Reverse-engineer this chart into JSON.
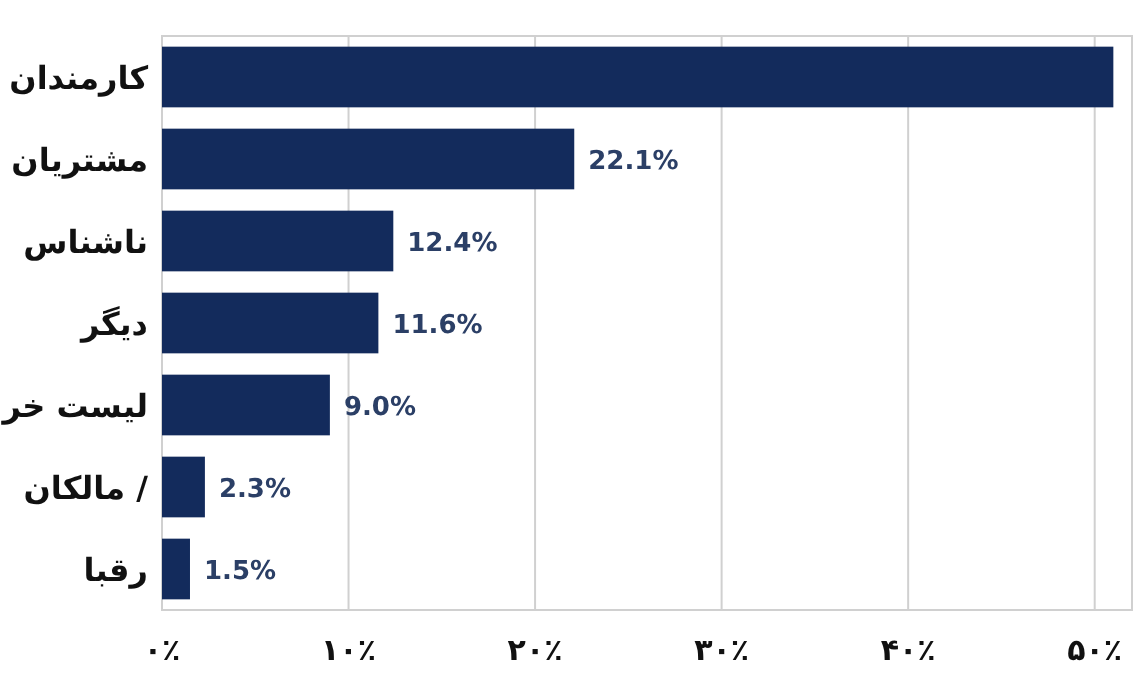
{
  "chart_data": {
    "type": "bar",
    "orientation": "horizontal",
    "categories": [
      "کارمندان",
      "مشتریان",
      "ناشناس",
      "دیگر",
      "لیست خر",
      "مالکان /",
      "رقبا"
    ],
    "values": [
      51.0,
      22.1,
      12.4,
      11.6,
      9.0,
      2.3,
      1.5
    ],
    "value_labels": [
      null,
      "22.1%",
      "12.4%",
      "11.6%",
      "9.0%",
      "2.3%",
      "1.5%"
    ],
    "color": "#132b5c",
    "xlim": [
      0,
      52
    ],
    "xticks": [
      {
        "value": 0,
        "label": "۰٪"
      },
      {
        "value": 10,
        "label": "۱۰٪"
      },
      {
        "value": 20,
        "label": "۲۰٪"
      },
      {
        "value": 30,
        "label": "۳۰٪"
      },
      {
        "value": 40,
        "label": "۴۰٪"
      },
      {
        "value": 50,
        "label": "۵۰٪"
      }
    ],
    "grid": "x"
  }
}
